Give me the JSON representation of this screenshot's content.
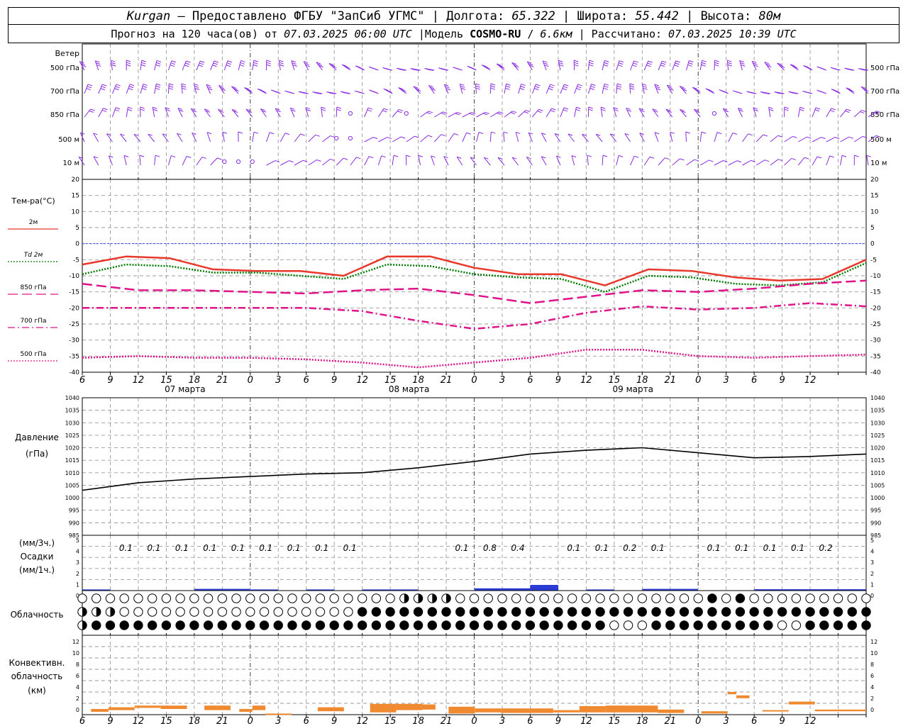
{
  "header": {
    "station": "Kurgan",
    "dash": " – ",
    "provider": "Предоставлено ФГБУ \"ЗапСиб УГМС\"",
    "lon_label": "Долгота:",
    "lon": "65.322",
    "lat_label": "Широта:",
    "lat": "55.442",
    "alt_label": "Высота:",
    "alt": "80м",
    "forecast_label": "Прогноз на 120 часа(ов) от",
    "forecast_start": "07.03.2025 06:00 UTC",
    "model_label": "Модель",
    "model_name": "COSMO-RU",
    "model_res": "6.6км",
    "calc_label": "Рассчитано:",
    "calc_time": "07.03.2025 10:39 UTC",
    "sep": "|"
  },
  "chart_data": {
    "type": "meteogram",
    "x": {
      "hour_ticks": [
        "6",
        "9",
        "12",
        "15",
        "18",
        "21",
        "0",
        "3",
        "6",
        "9",
        "12",
        "15",
        "18",
        "21",
        "0",
        "3",
        "6",
        "9",
        "12",
        "15",
        "18",
        "21",
        "0",
        "3",
        "6",
        "9",
        "12"
      ],
      "day_labels": [
        "07 марта",
        "08 марта",
        "09 марта"
      ]
    },
    "wind": {
      "title": "Ветер",
      "levels": [
        "500 гПа",
        "700 гПа",
        "850 гПа",
        "500 м",
        "10  м"
      ]
    },
    "temperature": {
      "title": "Тем-ра(°С)",
      "ylim": [
        -40,
        20
      ],
      "yticks": [
        20,
        15,
        10,
        5,
        0,
        -5,
        -10,
        -15,
        -20,
        -25,
        -30,
        -35,
        -40
      ],
      "series": [
        {
          "name": "2м",
          "color": "#e8382c",
          "style": "solid",
          "values": [
            -6.5,
            -4,
            -4.5,
            -8,
            -8.5,
            -8.5,
            -10,
            -4,
            -4,
            -7.5,
            -9.5,
            -9.5,
            -13,
            -8,
            -8.5,
            -10.5,
            -11.5,
            -11,
            -5
          ]
        },
        {
          "name": "Td  2м",
          "color": "#007a00",
          "style": "dotted",
          "values": [
            -9.5,
            -6.5,
            -7,
            -9,
            -9,
            -10,
            -11,
            -6.5,
            -7,
            -9.5,
            -10.5,
            -11,
            -15,
            -10,
            -10.5,
            -12.5,
            -13,
            -12,
            -6
          ]
        },
        {
          "name": "850 гПа",
          "color": "#e0148a",
          "style": "longdash",
          "values": [
            -12.5,
            -14.5,
            -14.5,
            -15,
            -15.5,
            -14.5,
            -14,
            -16,
            -18.5,
            -16.5,
            -14.5,
            -15,
            -14,
            -12.5,
            -11.5
          ]
        },
        {
          "name": "700 гПа",
          "color": "#e0148a",
          "style": "dashdot",
          "values": [
            -20,
            -20,
            -20,
            -20,
            -20,
            -21,
            -24,
            -26.5,
            -25,
            -21.5,
            -19.5,
            -20.5,
            -20,
            -18.5,
            -19.5
          ]
        },
        {
          "name": "500 гПа",
          "color": "#e0148a",
          "style": "dotted",
          "values": [
            -35.5,
            -35,
            -35.5,
            -35.5,
            -36,
            -37,
            -38.5,
            -37,
            -35.5,
            -33,
            -33,
            -35,
            -35.5,
            -35,
            -34.5
          ]
        }
      ]
    },
    "pressure": {
      "title": "Давление",
      "unit": "(гПа)",
      "ylim": [
        985,
        1040
      ],
      "yticks": [
        1040,
        1035,
        1030,
        1025,
        1020,
        1015,
        1010,
        1005,
        1000,
        995,
        990,
        985
      ],
      "values": [
        1003,
        1006,
        1007.5,
        1008.5,
        1009.5,
        1010,
        1012,
        1014.5,
        1017.5,
        1019,
        1020,
        1018,
        1016,
        1016.5,
        1017.5
      ]
    },
    "precipitation": {
      "title_3h": "(мм/3ч.)",
      "title": "Осадки",
      "title_1h": "(мм/1ч.)",
      "yticks": [
        "5",
        "4",
        "3",
        "2",
        "1",
        "0"
      ],
      "labels": [
        {
          "h": 9,
          "v": "0.1"
        },
        {
          "h": 12,
          "v": "0.1"
        },
        {
          "h": 15,
          "v": "0.1"
        },
        {
          "h": 18,
          "v": "0.1"
        },
        {
          "h": 21,
          "v": "0.1"
        },
        {
          "h": 24,
          "v": "0.1"
        },
        {
          "h": 27,
          "v": "0.1"
        },
        {
          "h": 30,
          "v": "0.1"
        },
        {
          "h": 33,
          "v": "0.1"
        },
        {
          "h": 45,
          "v": "0.1"
        },
        {
          "h": 48,
          "v": "0.8"
        },
        {
          "h": 51,
          "v": "0.4"
        },
        {
          "h": 57,
          "v": "0.1"
        },
        {
          "h": 60,
          "v": "0.1"
        },
        {
          "h": 63,
          "v": "0.2"
        },
        {
          "h": 66,
          "v": "0.1"
        },
        {
          "h": 72,
          "v": "0.1"
        },
        {
          "h": 75,
          "v": "0.1"
        },
        {
          "h": 78,
          "v": "0.1"
        },
        {
          "h": 81,
          "v": "0.1"
        },
        {
          "h": 84,
          "v": "0.2"
        }
      ]
    },
    "cloudiness": {
      "title": "Облачность"
    },
    "convective": {
      "title_1": "Конвективн.",
      "title_2": "облачность",
      "title_3": "(км)",
      "yticks": [
        "12",
        "10",
        "8",
        "6",
        "4",
        "2",
        "0"
      ]
    }
  }
}
